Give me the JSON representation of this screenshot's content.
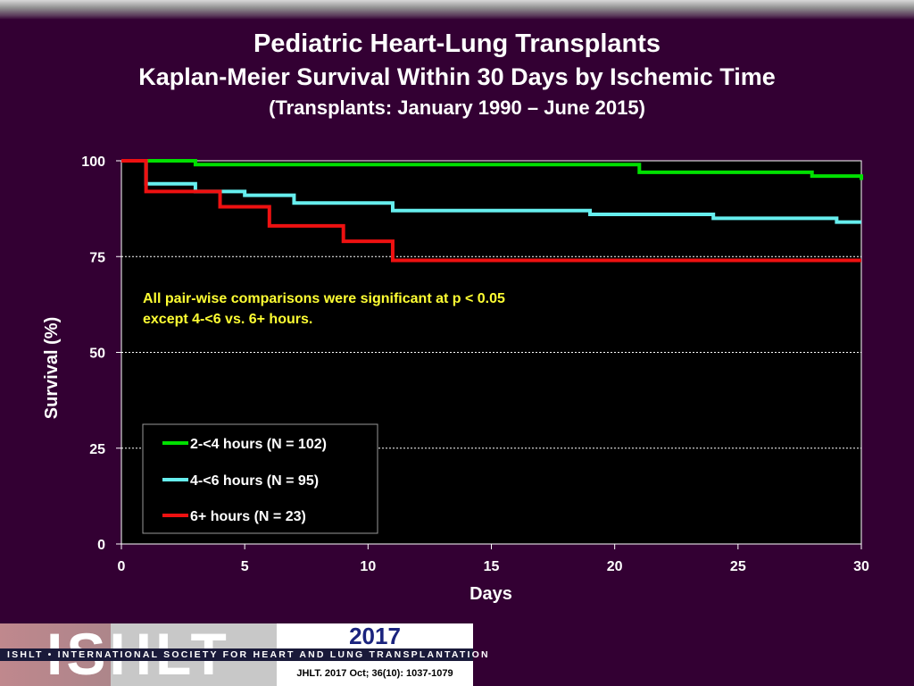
{
  "header": {
    "title": "Pediatric Heart-Lung Transplants",
    "subtitle": "Kaplan-Meier Survival Within 30 Days by Ischemic Time",
    "subtitle2": "(Transplants: January 1990 – June 2015)"
  },
  "chart_data": {
    "type": "line",
    "xlabel": "Days",
    "ylabel": "Survival (%)",
    "xlim": [
      0,
      30
    ],
    "ylim": [
      0,
      100
    ],
    "xticks": [
      "0",
      "5",
      "10",
      "15",
      "20",
      "25",
      "30"
    ],
    "yticks": [
      "0",
      "25",
      "50",
      "75",
      "100"
    ],
    "grid": "horizontal dashed",
    "annotation": [
      "All pair-wise comparisons were significant at p < 0.05",
      "except 4-<6 vs. 6+ hours."
    ],
    "legend_position": "lower-left",
    "series": [
      {
        "name": "2-<4 hours (N = 102)",
        "color": "#00e000",
        "step": true,
        "x": [
          0,
          2,
          3,
          19,
          21,
          27,
          28,
          29.5,
          30
        ],
        "y": [
          100,
          100,
          99,
          99,
          97,
          97,
          96,
          96,
          95
        ]
      },
      {
        "name": "4-<6 hours (N = 95)",
        "color": "#66eeee",
        "step": true,
        "x": [
          0,
          1,
          2,
          3,
          4,
          5,
          6,
          7,
          10,
          11,
          18,
          19,
          23,
          24,
          28,
          29,
          30
        ],
        "y": [
          100,
          94,
          94,
          92,
          92,
          91,
          91,
          89,
          89,
          87,
          87,
          86,
          86,
          85,
          85,
          84,
          84
        ]
      },
      {
        "name": "6+ hours (N = 23)",
        "color": "#ee1111",
        "step": true,
        "x": [
          0,
          1,
          3,
          4,
          5,
          6,
          8,
          9,
          10,
          11,
          30
        ],
        "y": [
          100,
          92,
          92,
          88,
          88,
          83,
          83,
          79,
          79,
          74,
          74
        ]
      }
    ]
  },
  "footer": {
    "logo_text": "ISHLT",
    "org_name": "ISHLT • INTERNATIONAL SOCIETY FOR HEART AND LUNG TRANSPLANTATION",
    "year": "2017",
    "citation": "JHLT. 2017 Oct; 36(10): 1037-1079"
  }
}
